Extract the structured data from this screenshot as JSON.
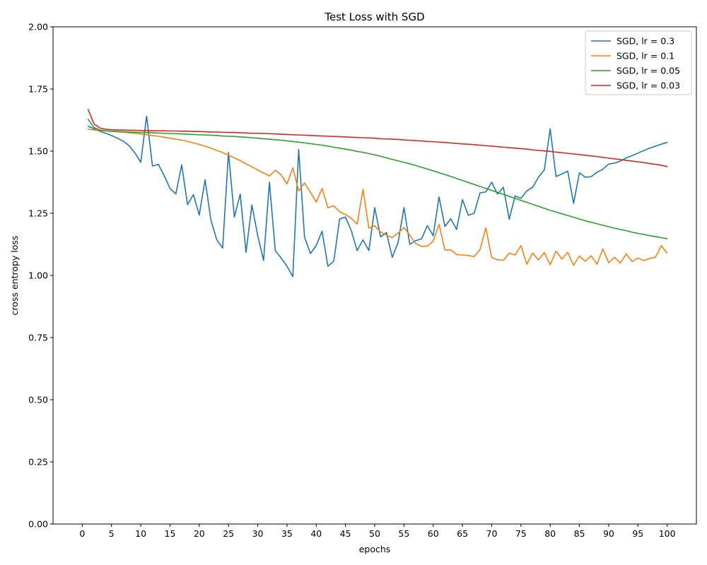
{
  "chart_data": {
    "type": "line",
    "title": "Test Loss with SGD",
    "xlabel": "epochs",
    "ylabel": "cross entropy loss",
    "xlim": [
      -5,
      105
    ],
    "ylim": [
      0,
      2
    ],
    "xticks": [
      0,
      5,
      10,
      15,
      20,
      25,
      30,
      35,
      40,
      45,
      50,
      55,
      60,
      65,
      70,
      75,
      80,
      85,
      90,
      95,
      100
    ],
    "yticks": [
      "0.00",
      "0.25",
      "0.50",
      "0.75",
      "1.00",
      "1.25",
      "1.50",
      "1.75",
      "2.00"
    ],
    "grid": false,
    "legend_position": "top-right",
    "series": [
      {
        "name": "SGD, lr = 0.3",
        "color": "#1f77b4",
        "x": [
          1,
          2,
          3,
          4,
          5,
          6,
          7,
          8,
          9,
          10,
          11,
          12,
          13,
          14,
          15,
          16,
          17,
          18,
          19,
          20,
          21,
          22,
          23,
          24,
          25,
          26,
          27,
          28,
          29,
          30,
          31,
          32,
          33,
          34,
          35,
          36,
          37,
          38,
          39,
          40,
          41,
          42,
          43,
          44,
          45,
          46,
          47,
          48,
          49,
          50,
          51,
          52,
          53,
          54,
          55,
          56,
          57,
          58,
          59,
          60,
          61,
          62,
          63,
          64,
          65,
          66,
          67,
          68,
          69,
          70,
          71,
          72,
          73,
          74,
          75,
          76,
          77,
          78,
          79,
          80,
          81,
          82,
          83,
          84,
          85,
          86,
          87,
          88,
          89,
          90,
          91,
          92,
          93,
          94,
          95,
          96,
          97,
          98,
          99,
          100
        ],
        "y": [
          1.6,
          1.59,
          1.58,
          1.572,
          1.563,
          1.552,
          1.54,
          1.522,
          1.493,
          1.455,
          1.641,
          1.44,
          1.447,
          1.402,
          1.35,
          1.328,
          1.445,
          1.285,
          1.325,
          1.243,
          1.385,
          1.222,
          1.143,
          1.11,
          1.495,
          1.235,
          1.327,
          1.093,
          1.283,
          1.16,
          1.06,
          1.375,
          1.1,
          1.07,
          1.037,
          0.995,
          1.507,
          1.155,
          1.088,
          1.12,
          1.178,
          1.037,
          1.057,
          1.227,
          1.235,
          1.18,
          1.1,
          1.143,
          1.1,
          1.273,
          1.155,
          1.173,
          1.073,
          1.133,
          1.273,
          1.125,
          1.14,
          1.147,
          1.2,
          1.16,
          1.316,
          1.197,
          1.228,
          1.185,
          1.305,
          1.242,
          1.25,
          1.332,
          1.336,
          1.375,
          1.327,
          1.355,
          1.226,
          1.32,
          1.31,
          1.34,
          1.355,
          1.395,
          1.425,
          1.59,
          1.398,
          1.408,
          1.42,
          1.29,
          1.413,
          1.395,
          1.397,
          1.415,
          1.427,
          1.448,
          1.452,
          1.46,
          1.473,
          1.482,
          1.492,
          1.502,
          1.512,
          1.52,
          1.528,
          1.535
        ]
      },
      {
        "name": "SGD, lr = 0.1",
        "color": "#ff7f0e",
        "x": [
          1,
          2,
          3,
          4,
          5,
          6,
          7,
          8,
          9,
          10,
          11,
          12,
          13,
          14,
          15,
          16,
          17,
          18,
          19,
          20,
          21,
          22,
          23,
          24,
          25,
          26,
          27,
          28,
          29,
          30,
          31,
          32,
          33,
          34,
          35,
          36,
          37,
          38,
          39,
          40,
          41,
          42,
          43,
          44,
          45,
          46,
          47,
          48,
          49,
          50,
          51,
          52,
          53,
          54,
          55,
          56,
          57,
          58,
          59,
          60,
          61,
          62,
          63,
          64,
          65,
          66,
          67,
          68,
          69,
          70,
          71,
          72,
          73,
          74,
          75,
          76,
          77,
          78,
          79,
          80,
          81,
          82,
          83,
          84,
          85,
          86,
          87,
          88,
          89,
          90,
          91,
          92,
          93,
          94,
          95,
          96,
          97,
          98,
          99,
          100
        ],
        "y": [
          1.588,
          1.585,
          1.583,
          1.581,
          1.579,
          1.578,
          1.576,
          1.574,
          1.572,
          1.569,
          1.566,
          1.563,
          1.56,
          1.556,
          1.552,
          1.548,
          1.544,
          1.539,
          1.533,
          1.527,
          1.52,
          1.512,
          1.503,
          1.494,
          1.484,
          1.473,
          1.462,
          1.449,
          1.437,
          1.424,
          1.412,
          1.4,
          1.423,
          1.405,
          1.368,
          1.433,
          1.34,
          1.372,
          1.335,
          1.295,
          1.35,
          1.272,
          1.28,
          1.256,
          1.245,
          1.23,
          1.207,
          1.347,
          1.19,
          1.2,
          1.175,
          1.162,
          1.152,
          1.17,
          1.193,
          1.162,
          1.128,
          1.117,
          1.118,
          1.138,
          1.205,
          1.102,
          1.103,
          1.084,
          1.082,
          1.08,
          1.076,
          1.104,
          1.191,
          1.072,
          1.063,
          1.061,
          1.09,
          1.082,
          1.12,
          1.045,
          1.09,
          1.062,
          1.092,
          1.043,
          1.098,
          1.066,
          1.093,
          1.041,
          1.078,
          1.057,
          1.079,
          1.045,
          1.107,
          1.051,
          1.073,
          1.05,
          1.087,
          1.056,
          1.07,
          1.06,
          1.068,
          1.074,
          1.12,
          1.089
        ]
      },
      {
        "name": "SGD, lr = 0.05",
        "color": "#2ca02c",
        "x": [
          1,
          2,
          3,
          4,
          5,
          6,
          7,
          8,
          9,
          10,
          11,
          12,
          13,
          14,
          15,
          16,
          17,
          18,
          19,
          20,
          21,
          22,
          23,
          24,
          25,
          26,
          27,
          28,
          29,
          30,
          31,
          32,
          33,
          34,
          35,
          36,
          37,
          38,
          39,
          40,
          41,
          42,
          43,
          44,
          45,
          46,
          47,
          48,
          49,
          50,
          51,
          52,
          53,
          54,
          55,
          56,
          57,
          58,
          59,
          60,
          61,
          62,
          63,
          64,
          65,
          66,
          67,
          68,
          69,
          70,
          71,
          72,
          73,
          74,
          75,
          76,
          77,
          78,
          79,
          80,
          81,
          82,
          83,
          84,
          85,
          86,
          87,
          88,
          89,
          90,
          91,
          92,
          93,
          94,
          95,
          96,
          97,
          98,
          99,
          100
        ],
        "y": [
          1.628,
          1.595,
          1.585,
          1.582,
          1.58,
          1.579,
          1.578,
          1.577,
          1.576,
          1.575,
          1.575,
          1.574,
          1.573,
          1.572,
          1.571,
          1.57,
          1.569,
          1.568,
          1.567,
          1.566,
          1.565,
          1.564,
          1.563,
          1.561,
          1.56,
          1.559,
          1.557,
          1.556,
          1.554,
          1.552,
          1.55,
          1.548,
          1.546,
          1.544,
          1.541,
          1.539,
          1.536,
          1.533,
          1.53,
          1.527,
          1.524,
          1.52,
          1.516,
          1.512,
          1.508,
          1.504,
          1.499,
          1.495,
          1.49,
          1.485,
          1.479,
          1.473,
          1.467,
          1.461,
          1.455,
          1.449,
          1.442,
          1.435,
          1.428,
          1.421,
          1.413,
          1.406,
          1.398,
          1.39,
          1.382,
          1.374,
          1.366,
          1.358,
          1.35,
          1.342,
          1.334,
          1.326,
          1.318,
          1.31,
          1.302,
          1.294,
          1.286,
          1.278,
          1.27,
          1.262,
          1.255,
          1.248,
          1.241,
          1.234,
          1.227,
          1.22,
          1.214,
          1.208,
          1.202,
          1.196,
          1.19,
          1.185,
          1.18,
          1.174,
          1.169,
          1.165,
          1.16,
          1.156,
          1.152,
          1.148
        ]
      },
      {
        "name": "SGD, lr = 0.03",
        "color": "#d62728",
        "x": [
          1,
          2,
          3,
          4,
          5,
          6,
          7,
          8,
          9,
          10,
          11,
          12,
          13,
          14,
          15,
          16,
          17,
          18,
          19,
          20,
          21,
          22,
          23,
          24,
          25,
          26,
          27,
          28,
          29,
          30,
          31,
          32,
          33,
          34,
          35,
          36,
          37,
          38,
          39,
          40,
          41,
          42,
          43,
          44,
          45,
          46,
          47,
          48,
          49,
          50,
          51,
          52,
          53,
          54,
          55,
          56,
          57,
          58,
          59,
          60,
          61,
          62,
          63,
          64,
          65,
          66,
          67,
          68,
          69,
          70,
          71,
          72,
          73,
          74,
          75,
          76,
          77,
          78,
          79,
          80,
          81,
          82,
          83,
          84,
          85,
          86,
          87,
          88,
          89,
          90,
          91,
          92,
          93,
          94,
          95,
          96,
          97,
          98,
          99,
          100
        ],
        "y": [
          1.668,
          1.61,
          1.593,
          1.588,
          1.586,
          1.585,
          1.585,
          1.584,
          1.584,
          1.583,
          1.583,
          1.582,
          1.582,
          1.582,
          1.581,
          1.581,
          1.58,
          1.58,
          1.579,
          1.579,
          1.578,
          1.577,
          1.577,
          1.576,
          1.575,
          1.575,
          1.574,
          1.573,
          1.572,
          1.572,
          1.571,
          1.57,
          1.569,
          1.568,
          1.567,
          1.566,
          1.565,
          1.564,
          1.563,
          1.562,
          1.561,
          1.56,
          1.559,
          1.558,
          1.557,
          1.556,
          1.555,
          1.554,
          1.553,
          1.552,
          1.55,
          1.549,
          1.548,
          1.547,
          1.545,
          1.544,
          1.542,
          1.541,
          1.539,
          1.538,
          1.536,
          1.535,
          1.533,
          1.531,
          1.529,
          1.528,
          1.526,
          1.524,
          1.522,
          1.52,
          1.518,
          1.516,
          1.514,
          1.512,
          1.51,
          1.508,
          1.505,
          1.503,
          1.501,
          1.499,
          1.496,
          1.494,
          1.491,
          1.489,
          1.486,
          1.483,
          1.481,
          1.478,
          1.475,
          1.472,
          1.469,
          1.466,
          1.463,
          1.46,
          1.457,
          1.454,
          1.45,
          1.447,
          1.443,
          1.438
        ]
      }
    ]
  }
}
